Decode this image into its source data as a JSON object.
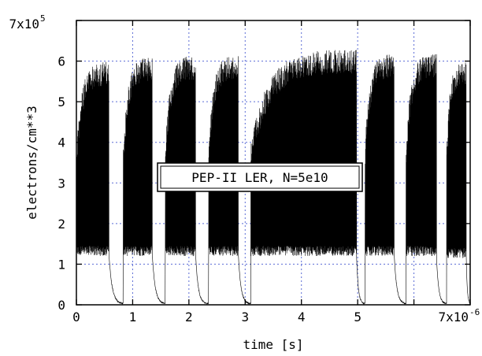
{
  "chart_data": {
    "type": "line",
    "title": "",
    "xlabel": "time [s]",
    "ylabel": "electrons/cm**3",
    "xlim": [
      0,
      7e-06
    ],
    "ylim": [
      0,
      700000
    ],
    "grid": true,
    "x_ticks": [
      {
        "value": 0,
        "label": "0"
      },
      {
        "value": 1e-06,
        "label": "1"
      },
      {
        "value": 2e-06,
        "label": "2"
      },
      {
        "value": 3e-06,
        "label": "3"
      },
      {
        "value": 4e-06,
        "label": "4"
      },
      {
        "value": 5e-06,
        "label": "5"
      },
      {
        "value": 6e-06,
        "label": ""
      },
      {
        "value": 7e-06,
        "label": "7x10",
        "exponent": "-6"
      }
    ],
    "y_ticks": [
      {
        "value": 0,
        "label": "0"
      },
      {
        "value": 100000,
        "label": "1"
      },
      {
        "value": 200000,
        "label": "2"
      },
      {
        "value": 300000,
        "label": "3"
      },
      {
        "value": 400000,
        "label": "4"
      },
      {
        "value": 500000,
        "label": "5"
      },
      {
        "value": 600000,
        "label": "6"
      },
      {
        "value": 700000,
        "label": "7x10",
        "exponent": "5"
      }
    ],
    "annotation": "PEP-II LER, N=5e10",
    "series": [
      {
        "color": "#000000",
        "bunch_trains": [
          {
            "start": 0.0,
            "end": 5.8e-07,
            "peak": 600000,
            "floor": 120000,
            "decay_end": 8e-07
          },
          {
            "start": 8.3e-07,
            "end": 1.35e-06,
            "peak": 610000,
            "floor": 120000,
            "decay_end": 1.55e-06
          },
          {
            "start": 1.58e-06,
            "end": 2.12e-06,
            "peak": 615000,
            "floor": 120000,
            "decay_end": 2.3e-06
          },
          {
            "start": 2.35e-06,
            "end": 2.88e-06,
            "peak": 615000,
            "floor": 120000,
            "decay_end": 3.06e-06
          },
          {
            "start": 3.1e-06,
            "end": 4.98e-06,
            "peak": 630000,
            "floor": 120000,
            "decay_end": 5.1e-06
          },
          {
            "start": 5.13e-06,
            "end": 5.65e-06,
            "peak": 620000,
            "floor": 120000,
            "decay_end": 5.83e-06
          },
          {
            "start": 5.86e-06,
            "end": 6.4e-06,
            "peak": 620000,
            "floor": 120000,
            "decay_end": 6.55e-06
          },
          {
            "start": 6.58e-06,
            "end": 6.93e-06,
            "peak": 600000,
            "floor": 115000,
            "decay_end": 7e-06
          }
        ]
      }
    ]
  }
}
